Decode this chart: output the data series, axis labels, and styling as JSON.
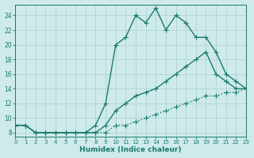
{
  "title": "",
  "xlabel": "Humidex (Indice chaleur)",
  "ylabel": "",
  "background_color": "#ceeaea",
  "grid_color": "#aed4d4",
  "line_color": "#1a7a6e",
  "xlim": [
    0,
    23
  ],
  "ylim": [
    7.5,
    25.5
  ],
  "yticks": [
    8,
    10,
    12,
    14,
    16,
    18,
    20,
    22,
    24
  ],
  "xticks": [
    0,
    1,
    2,
    3,
    4,
    5,
    6,
    7,
    8,
    9,
    10,
    11,
    12,
    13,
    14,
    15,
    16,
    17,
    18,
    19,
    20,
    21,
    22,
    23
  ],
  "series": [
    {
      "x": [
        0,
        1,
        2,
        3,
        4,
        5,
        6,
        7,
        8,
        9,
        10,
        11,
        12,
        13,
        14,
        15,
        16,
        17,
        18,
        19,
        20,
        21,
        22,
        23
      ],
      "y": [
        9,
        9,
        8,
        8,
        8,
        8,
        8,
        8,
        8,
        8,
        9,
        9,
        9.5,
        10,
        10.5,
        11,
        11.5,
        12,
        12.5,
        13,
        13,
        13.5,
        13.5,
        14
      ],
      "color": "#1a7a6e",
      "linewidth": 1.0,
      "marker": "+",
      "markersize": 4,
      "linestyle": ":"
    },
    {
      "x": [
        0,
        1,
        2,
        3,
        4,
        5,
        6,
        7,
        8,
        9,
        10,
        11,
        12,
        13,
        14,
        15,
        16,
        17,
        18,
        19,
        20,
        21,
        22,
        23
      ],
      "y": [
        9,
        9,
        8,
        8,
        8,
        8,
        8,
        8,
        8,
        9,
        11,
        12,
        13,
        13.5,
        14,
        15,
        16,
        17,
        18,
        19,
        16,
        15,
        14,
        14
      ],
      "color": "#1a7a6e",
      "linewidth": 1.0,
      "marker": "+",
      "markersize": 4,
      "linestyle": "-"
    },
    {
      "x": [
        0,
        1,
        2,
        3,
        4,
        5,
        6,
        7,
        8,
        9,
        10,
        11,
        12,
        13,
        14,
        15,
        16,
        17,
        18,
        19,
        20,
        21,
        22,
        23
      ],
      "y": [
        9,
        9,
        8,
        8,
        8,
        8,
        8,
        8,
        9,
        12,
        20,
        21,
        24,
        23,
        25,
        22,
        24,
        23,
        21,
        21,
        19,
        16,
        15,
        14
      ],
      "color": "#1a7a6e",
      "linewidth": 1.0,
      "marker": "+",
      "markersize": 4,
      "linestyle": "-"
    }
  ]
}
